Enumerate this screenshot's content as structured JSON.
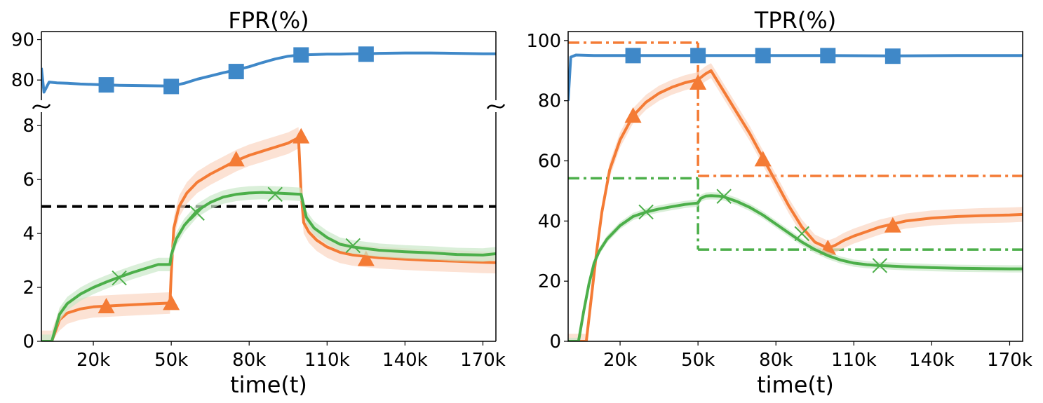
{
  "colors": {
    "blue": "#3f88c8",
    "orange": "#f47b35",
    "green": "#4caf4a",
    "black": "#000000",
    "orange_band": "#fbd6c2",
    "green_band": "#cbe8c9",
    "blue_band": "#bcd7ee"
  },
  "chart_data": [
    {
      "type": "line",
      "title": "FPR(%)",
      "xlabel": "time(t)",
      "ylabel": "",
      "xlim": [
        0,
        175000
      ],
      "xticks": [
        20000,
        50000,
        80000,
        110000,
        140000,
        170000
      ],
      "xtick_labels": [
        "20k",
        "50k",
        "80k",
        "110k",
        "140k",
        "170k"
      ],
      "broken_y_axis": true,
      "upper_ylim": [
        75,
        92
      ],
      "upper_yticks": [
        80,
        90
      ],
      "ylim": [
        0,
        8.5
      ],
      "yticks": [
        0,
        2,
        4,
        6,
        8
      ],
      "grid": false,
      "reference_lines": [
        {
          "style": "dashed",
          "color": "black",
          "y": 5
        }
      ],
      "series": [
        {
          "color": "blue",
          "marker": "square",
          "panel": "upper",
          "x": [
            0,
            1000,
            3000,
            6000,
            10000,
            15000,
            20000,
            25000,
            30000,
            40000,
            50000,
            55000,
            60000,
            65000,
            70000,
            75000,
            80000,
            85000,
            90000,
            95000,
            100000,
            105000,
            110000,
            115000,
            120000,
            125000,
            130000,
            140000,
            150000,
            160000,
            170000,
            175000
          ],
          "values": [
            83,
            77,
            79.5,
            79.3,
            79.2,
            79.0,
            78.9,
            78.8,
            78.7,
            78.6,
            78.5,
            79.2,
            80.2,
            81.0,
            81.8,
            82.5,
            83.3,
            84.3,
            85.2,
            85.9,
            86.2,
            86.3,
            86.4,
            86.4,
            86.5,
            86.5,
            86.6,
            86.7,
            86.7,
            86.6,
            86.5,
            86.5
          ],
          "marker_x": [
            25000,
            50000,
            75000,
            100000,
            125000
          ],
          "marker_values": [
            78.8,
            78.4,
            82.1,
            86.2,
            86.4
          ]
        },
        {
          "color": "orange",
          "marker": "triangle",
          "panel": "lower",
          "x": [
            0,
            4000,
            7000,
            10000,
            15000,
            20000,
            30000,
            40000,
            49500,
            50000,
            51000,
            53000,
            56000,
            60000,
            65000,
            70000,
            75000,
            80000,
            85000,
            90000,
            95000,
            99000,
            100000,
            101000,
            103000,
            106000,
            110000,
            115000,
            120000,
            130000,
            140000,
            150000,
            160000,
            170000,
            175000
          ],
          "values": [
            0,
            0,
            0.8,
            1.05,
            1.2,
            1.28,
            1.33,
            1.38,
            1.42,
            2.5,
            4.2,
            5.0,
            5.5,
            5.9,
            6.2,
            6.45,
            6.7,
            6.9,
            7.05,
            7.2,
            7.35,
            7.55,
            5.5,
            4.4,
            4.05,
            3.75,
            3.5,
            3.3,
            3.2,
            3.1,
            3.05,
            3.0,
            2.97,
            2.93,
            2.92
          ],
          "band": 0.4,
          "marker_x": [
            25000,
            50000,
            75000,
            100000,
            125000
          ],
          "marker_values": [
            1.3,
            1.42,
            6.75,
            7.6,
            3.05
          ]
        },
        {
          "color": "green",
          "marker": "x",
          "panel": "lower",
          "x": [
            0,
            4000,
            7000,
            10000,
            15000,
            20000,
            25000,
            30000,
            35000,
            40000,
            45000,
            49500,
            50000,
            52000,
            55000,
            60000,
            65000,
            70000,
            75000,
            80000,
            85000,
            90000,
            95000,
            100000,
            102000,
            105000,
            110000,
            115000,
            120000,
            130000,
            140000,
            150000,
            160000,
            170000,
            175000
          ],
          "values": [
            0,
            0,
            1.0,
            1.4,
            1.75,
            2.0,
            2.2,
            2.38,
            2.55,
            2.7,
            2.85,
            2.85,
            3.2,
            3.8,
            4.3,
            4.85,
            5.15,
            5.35,
            5.45,
            5.5,
            5.52,
            5.5,
            5.48,
            5.45,
            4.6,
            4.2,
            3.85,
            3.6,
            3.5,
            3.38,
            3.32,
            3.28,
            3.22,
            3.2,
            3.25
          ],
          "band": 0.25,
          "marker_x": [
            30000,
            60000,
            90000,
            120000
          ],
          "marker_values": [
            2.35,
            4.75,
            5.45,
            3.55
          ]
        }
      ]
    },
    {
      "type": "line",
      "title": "TPR(%)",
      "xlabel": "time(t)",
      "ylabel": "",
      "xlim": [
        0,
        175000
      ],
      "xticks": [
        20000,
        50000,
        80000,
        110000,
        140000,
        170000
      ],
      "xtick_labels": [
        "20k",
        "50k",
        "80k",
        "110k",
        "140k",
        "170k"
      ],
      "ylim": [
        0,
        103
      ],
      "yticks": [
        0,
        20,
        40,
        60,
        80,
        100
      ],
      "grid": false,
      "reference_lines": [
        {
          "style": "dashdot",
          "color": "orange",
          "segments": [
            {
              "x": [
                0,
                50000
              ],
              "y": 99.3
            },
            {
              "x": [
                50000,
                175000
              ],
              "y": 55
            }
          ]
        },
        {
          "style": "dashdot",
          "color": "green",
          "segments": [
            {
              "x": [
                0,
                50000
              ],
              "y": 54.2
            },
            {
              "x": [
                50000,
                175000
              ],
              "y": 30.5
            }
          ]
        }
      ],
      "series": [
        {
          "color": "blue",
          "marker": "square",
          "x": [
            0,
            1000,
            3000,
            10000,
            25000,
            50000,
            75000,
            100000,
            125000,
            150000,
            175000
          ],
          "values": [
            80,
            94.5,
            95.2,
            95.0,
            95.0,
            95.0,
            95.0,
            95.0,
            94.9,
            95.0,
            95.0
          ],
          "marker_x": [
            25000,
            50000,
            75000,
            100000,
            125000
          ],
          "marker_values": [
            95.0,
            95.0,
            95.0,
            95.0,
            94.8
          ]
        },
        {
          "color": "orange",
          "marker": "triangle",
          "x": [
            0,
            5000,
            7000,
            9000,
            11000,
            13000,
            16000,
            20000,
            25000,
            30000,
            35000,
            40000,
            45000,
            50000,
            53000,
            55000,
            60000,
            65000,
            70000,
            75000,
            80000,
            85000,
            90000,
            95000,
            100000,
            103000,
            106000,
            110000,
            115000,
            120000,
            125000,
            130000,
            140000,
            150000,
            160000,
            170000,
            175000
          ],
          "values": [
            0,
            0,
            0,
            15,
            30,
            43,
            57,
            67,
            75,
            79.5,
            82.5,
            84.5,
            86,
            87,
            89,
            90,
            83,
            76,
            69,
            61,
            53,
            45,
            38,
            33,
            31,
            32,
            33.5,
            35,
            36.5,
            38,
            39,
            40,
            41,
            41.5,
            41.8,
            42,
            42.2
          ],
          "band": 2.5,
          "marker_x": [
            25000,
            50000,
            75000,
            100000,
            125000
          ],
          "marker_values": [
            75,
            86,
            60.5,
            31,
            38.5
          ]
        },
        {
          "color": "green",
          "marker": "x",
          "x": [
            0,
            4000,
            6000,
            8000,
            10000,
            12000,
            15000,
            20000,
            25000,
            30000,
            35000,
            40000,
            45000,
            50000,
            51000,
            53000,
            55000,
            58000,
            60000,
            65000,
            70000,
            75000,
            80000,
            85000,
            90000,
            95000,
            100000,
            105000,
            110000,
            115000,
            120000,
            130000,
            140000,
            150000,
            160000,
            170000,
            175000
          ],
          "values": [
            0,
            0,
            10,
            19,
            26,
            30,
            34,
            38.5,
            41.5,
            43,
            44,
            44.8,
            45.5,
            46,
            47.5,
            48.3,
            48.4,
            48.3,
            48,
            46.5,
            44.5,
            42,
            39,
            36,
            33,
            30.5,
            28.5,
            27,
            26,
            25.5,
            25.2,
            24.8,
            24.5,
            24.3,
            24.2,
            24.1,
            24.1
          ],
          "band": 1.2,
          "marker_x": [
            30000,
            60000,
            90000,
            120000
          ],
          "marker_values": [
            43,
            48.2,
            35.8,
            25.2
          ]
        }
      ]
    }
  ]
}
